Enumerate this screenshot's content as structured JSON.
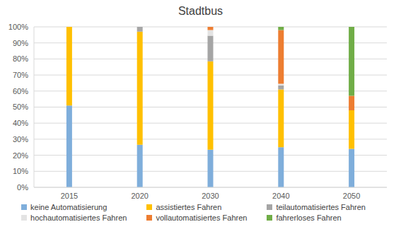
{
  "chart_data": {
    "type": "bar",
    "title": "Stadtbus",
    "stacked": true,
    "grid": true,
    "legend": "bottom",
    "categories": [
      "2015",
      "2020",
      "2030",
      "2040",
      "2050"
    ],
    "series": [
      {
        "name": "keine Automatisierung",
        "color": "#7FAEDB",
        "values": [
          51,
          26.5,
          23.5,
          25,
          24
        ]
      },
      {
        "name": "assistiertes Fahren",
        "color": "#FFC000",
        "values": [
          49,
          70.5,
          55,
          36,
          24
        ]
      },
      {
        "name": "teilautomatisiertes Fahren",
        "color": "#A5A5A5",
        "values": [
          0,
          3,
          16,
          2.5,
          0
        ]
      },
      {
        "name": "hochautomatisiertes Fahren",
        "color": "#E3E3E3",
        "values": [
          0,
          0,
          3.5,
          1,
          0
        ]
      },
      {
        "name": "vollautomatisiertes Fahren",
        "color": "#ED7D31",
        "values": [
          0,
          0,
          2,
          33.5,
          9
        ]
      },
      {
        "name": "fahrerloses Fahren",
        "color": "#70AD47",
        "values": [
          0,
          0,
          0,
          2,
          43
        ]
      }
    ],
    "ylim": [
      0,
      100
    ],
    "yticks": [
      {
        "value": 0,
        "label": "0%"
      },
      {
        "value": 10,
        "label": "10%"
      },
      {
        "value": 20,
        "label": "20%"
      },
      {
        "value": 30,
        "label": "30%"
      },
      {
        "value": 40,
        "label": "40%"
      },
      {
        "value": 50,
        "label": "50%"
      },
      {
        "value": 60,
        "label": "60%"
      },
      {
        "value": 70,
        "label": "70%"
      },
      {
        "value": 80,
        "label": "80%"
      },
      {
        "value": 90,
        "label": "90%"
      },
      {
        "value": 100,
        "label": "100%"
      }
    ]
  }
}
